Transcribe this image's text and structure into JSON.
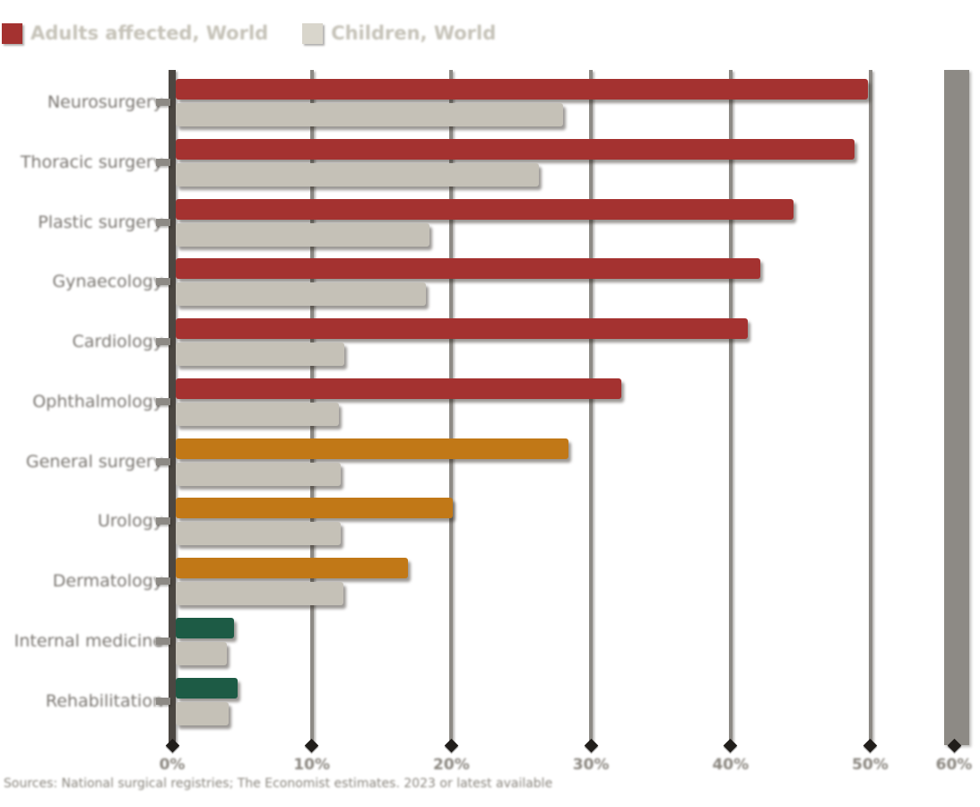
{
  "legend": {
    "items": [
      {
        "label": "Adults affected, World",
        "color": "#a43230"
      },
      {
        "label": "Children, World",
        "color": "#d9d6cc"
      }
    ]
  },
  "chart_data": {
    "type": "bar",
    "orientation": "horizontal",
    "title": "",
    "xlabel": "",
    "ylabel": "",
    "xlim": [
      0,
      50
    ],
    "grid": "vertical",
    "legend_position": "top-left",
    "categories": [
      "Neurosurgery",
      "Thoracic surgery",
      "Plastic surgery",
      "Gynaecology",
      "Cardiology",
      "Ophthalmology",
      "General surgery",
      "Urology",
      "Dermatology",
      "Internal medicine",
      "Rehabilitation"
    ],
    "series": [
      {
        "name": "Adults affected, World",
        "values": [
          50.0,
          49.0,
          44.6,
          42.2,
          41.3,
          32.2,
          28.4,
          20.0,
          16.8,
          4.2,
          4.5
        ],
        "colors": [
          "#a43230",
          "#a43230",
          "#a43230",
          "#a43230",
          "#a43230",
          "#a43230",
          "#c17817",
          "#c17817",
          "#c17817",
          "#1d5b45",
          "#1d5b45"
        ]
      },
      {
        "name": "Children, World",
        "values": [
          28.0,
          26.2,
          18.3,
          18.1,
          12.2,
          11.8,
          11.9,
          11.9,
          12.1,
          3.7,
          3.8
        ],
        "color": "#c5c1b7"
      }
    ],
    "xticks": [
      {
        "value": 0,
        "label": "0%"
      },
      {
        "value": 10,
        "label": "10%"
      },
      {
        "value": 20,
        "label": "20%"
      },
      {
        "value": 30,
        "label": "30%"
      },
      {
        "value": 40,
        "label": "40%"
      },
      {
        "value": 50,
        "label": "50%"
      }
    ],
    "overflow_tick": {
      "label": "60%"
    }
  },
  "caption": "Sources: National surgical registries; The Economist estimates. 2023 or latest available",
  "colors": {
    "tier_high": "#a43230",
    "tier_medium": "#c17817",
    "tier_low": "#1d5b45",
    "compare_bar": "#c5c1b7",
    "axis": "#4c4742",
    "gridline": "#8d8a85",
    "category_label": "#7b7772",
    "tick_label": "#8b8780",
    "legend_text": "#c6c3b9",
    "caption_text": "#8a867e"
  }
}
